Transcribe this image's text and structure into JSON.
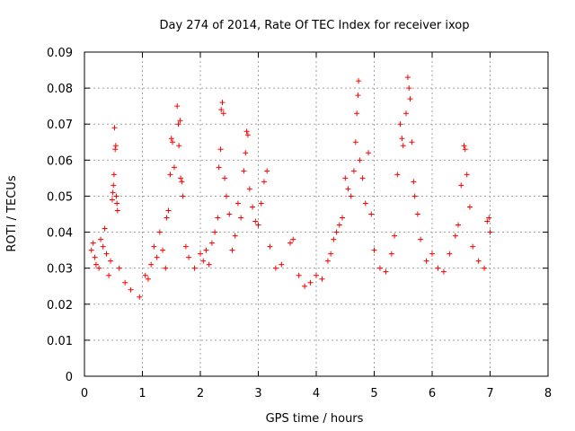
{
  "chart_data": {
    "type": "scatter",
    "title": "Day 274 of 2014, Rate Of TEC Index for receiver ixop",
    "xlabel": "GPS time / hours",
    "ylabel": "ROTI / TECUs",
    "xlim": [
      0,
      8
    ],
    "ylim": [
      0,
      0.09
    ],
    "x_ticks": [
      0,
      1,
      2,
      3,
      4,
      5,
      6,
      7,
      8
    ],
    "x_tick_labels": [
      "0",
      "1",
      "2",
      "3",
      "4",
      "5",
      "6",
      "7",
      "8"
    ],
    "y_ticks": [
      0,
      0.01,
      0.02,
      0.03,
      0.04,
      0.05,
      0.06,
      0.07,
      0.08,
      0.09
    ],
    "y_tick_labels": [
      "0",
      "0.01",
      "0.02",
      "0.03",
      "0.04",
      "0.05",
      "0.06",
      "0.07",
      "0.08",
      "0.09"
    ],
    "grid": true,
    "marker": "+",
    "color": "#ff0000",
    "data_range_x": [
      0.05,
      7.0
    ],
    "series": [
      {
        "name": "ROTI",
        "points": [
          [
            0.12,
            0.035
          ],
          [
            0.15,
            0.037
          ],
          [
            0.18,
            0.033
          ],
          [
            0.2,
            0.031
          ],
          [
            0.25,
            0.03
          ],
          [
            0.28,
            0.038
          ],
          [
            0.32,
            0.036
          ],
          [
            0.35,
            0.041
          ],
          [
            0.38,
            0.034
          ],
          [
            0.42,
            0.028
          ],
          [
            0.45,
            0.032
          ],
          [
            0.48,
            0.049
          ],
          [
            0.49,
            0.051
          ],
          [
            0.5,
            0.053
          ],
          [
            0.51,
            0.056
          ],
          [
            0.52,
            0.069
          ],
          [
            0.53,
            0.063
          ],
          [
            0.54,
            0.064
          ],
          [
            0.55,
            0.05
          ],
          [
            0.56,
            0.048
          ],
          [
            0.57,
            0.046
          ],
          [
            0.6,
            0.03
          ],
          [
            0.7,
            0.026
          ],
          [
            0.8,
            0.024
          ],
          [
            0.95,
            0.022
          ],
          [
            1.05,
            0.028
          ],
          [
            1.1,
            0.027
          ],
          [
            1.15,
            0.031
          ],
          [
            1.2,
            0.036
          ],
          [
            1.25,
            0.033
          ],
          [
            1.3,
            0.04
          ],
          [
            1.35,
            0.035
          ],
          [
            1.4,
            0.03
          ],
          [
            1.42,
            0.044
          ],
          [
            1.45,
            0.046
          ],
          [
            1.48,
            0.056
          ],
          [
            1.5,
            0.066
          ],
          [
            1.52,
            0.065
          ],
          [
            1.55,
            0.058
          ],
          [
            1.6,
            0.075
          ],
          [
            1.62,
            0.07
          ],
          [
            1.63,
            0.064
          ],
          [
            1.65,
            0.071
          ],
          [
            1.66,
            0.055
          ],
          [
            1.68,
            0.054
          ],
          [
            1.7,
            0.05
          ],
          [
            1.75,
            0.036
          ],
          [
            1.8,
            0.033
          ],
          [
            1.9,
            0.03
          ],
          [
            2.0,
            0.034
          ],
          [
            2.05,
            0.032
          ],
          [
            2.1,
            0.035
          ],
          [
            2.15,
            0.031
          ],
          [
            2.2,
            0.037
          ],
          [
            2.25,
            0.04
          ],
          [
            2.3,
            0.044
          ],
          [
            2.32,
            0.058
          ],
          [
            2.35,
            0.063
          ],
          [
            2.36,
            0.074
          ],
          [
            2.38,
            0.076
          ],
          [
            2.4,
            0.073
          ],
          [
            2.42,
            0.055
          ],
          [
            2.45,
            0.05
          ],
          [
            2.5,
            0.045
          ],
          [
            2.55,
            0.035
          ],
          [
            2.6,
            0.039
          ],
          [
            2.65,
            0.048
          ],
          [
            2.7,
            0.044
          ],
          [
            2.75,
            0.057
          ],
          [
            2.78,
            0.062
          ],
          [
            2.8,
            0.068
          ],
          [
            2.82,
            0.067
          ],
          [
            2.85,
            0.052
          ],
          [
            2.9,
            0.047
          ],
          [
            2.95,
            0.043
          ],
          [
            3.0,
            0.042
          ],
          [
            3.05,
            0.048
          ],
          [
            3.1,
            0.054
          ],
          [
            3.15,
            0.057
          ],
          [
            3.2,
            0.036
          ],
          [
            3.3,
            0.03
          ],
          [
            3.4,
            0.031
          ],
          [
            3.55,
            0.037
          ],
          [
            3.6,
            0.038
          ],
          [
            3.7,
            0.028
          ],
          [
            3.8,
            0.025
          ],
          [
            3.9,
            0.026
          ],
          [
            4.0,
            0.028
          ],
          [
            4.1,
            0.027
          ],
          [
            4.2,
            0.032
          ],
          [
            4.25,
            0.034
          ],
          [
            4.3,
            0.038
          ],
          [
            4.35,
            0.04
          ],
          [
            4.4,
            0.042
          ],
          [
            4.45,
            0.044
          ],
          [
            4.5,
            0.055
          ],
          [
            4.55,
            0.052
          ],
          [
            4.6,
            0.05
          ],
          [
            4.65,
            0.057
          ],
          [
            4.68,
            0.065
          ],
          [
            4.7,
            0.073
          ],
          [
            4.72,
            0.078
          ],
          [
            4.73,
            0.082
          ],
          [
            4.75,
            0.06
          ],
          [
            4.8,
            0.055
          ],
          [
            4.85,
            0.048
          ],
          [
            4.9,
            0.062
          ],
          [
            4.95,
            0.045
          ],
          [
            5.0,
            0.035
          ],
          [
            5.1,
            0.03
          ],
          [
            5.2,
            0.029
          ],
          [
            5.3,
            0.034
          ],
          [
            5.35,
            0.039
          ],
          [
            5.4,
            0.056
          ],
          [
            5.45,
            0.07
          ],
          [
            5.48,
            0.066
          ],
          [
            5.5,
            0.064
          ],
          [
            5.55,
            0.073
          ],
          [
            5.58,
            0.083
          ],
          [
            5.6,
            0.08
          ],
          [
            5.62,
            0.077
          ],
          [
            5.65,
            0.065
          ],
          [
            5.68,
            0.054
          ],
          [
            5.7,
            0.05
          ],
          [
            5.75,
            0.045
          ],
          [
            5.8,
            0.038
          ],
          [
            5.9,
            0.032
          ],
          [
            6.0,
            0.034
          ],
          [
            6.1,
            0.03
          ],
          [
            6.2,
            0.029
          ],
          [
            6.3,
            0.034
          ],
          [
            6.4,
            0.039
          ],
          [
            6.45,
            0.042
          ],
          [
            6.5,
            0.053
          ],
          [
            6.55,
            0.064
          ],
          [
            6.57,
            0.063
          ],
          [
            6.6,
            0.056
          ],
          [
            6.65,
            0.047
          ],
          [
            6.7,
            0.036
          ],
          [
            6.8,
            0.032
          ],
          [
            6.9,
            0.03
          ],
          [
            6.95,
            0.043
          ],
          [
            6.98,
            0.044
          ],
          [
            7.0,
            0.04
          ]
        ]
      }
    ]
  }
}
